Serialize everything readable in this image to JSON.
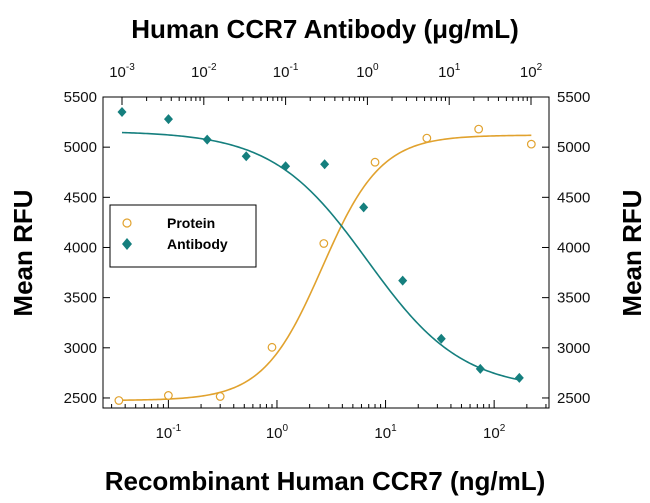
{
  "colors": {
    "protein": "#E1A22E",
    "antibody": "#157F7E",
    "axis": "#000000"
  },
  "chart_data": {
    "type": "scatter",
    "title": "Human CCR7 Antibody (μg/mL)",
    "xlabel": "Recombinant Human CCR7 (ng/mL)",
    "ylabel": "Mean RFU",
    "y2label": "Mean RFU",
    "xscale": "log",
    "xlim": [
      0.025,
      320
    ],
    "ylim": [
      2400,
      5500
    ],
    "bottom_ticks": [
      {
        "base": "10",
        "exp": "-1",
        "value": 0.1
      },
      {
        "base": "10",
        "exp": "0",
        "value": 1
      },
      {
        "base": "10",
        "exp": "1",
        "value": 10
      },
      {
        "base": "10",
        "exp": "2",
        "value": 100
      }
    ],
    "top_axis": {
      "xlim": [
        0.001,
        100
      ],
      "ticks": [
        {
          "base": "10",
          "exp": "-3",
          "value": 0.001
        },
        {
          "base": "10",
          "exp": "-2",
          "value": 0.01
        },
        {
          "base": "10",
          "exp": "-1",
          "value": 0.1
        },
        {
          "base": "10",
          "exp": "0",
          "value": 1
        },
        {
          "base": "10",
          "exp": "1",
          "value": 10
        },
        {
          "base": "10",
          "exp": "2",
          "value": 100
        }
      ]
    },
    "y_ticks": [
      {
        "label": "2500",
        "value": 2500
      },
      {
        "label": "3000",
        "value": 3000
      },
      {
        "label": "3500",
        "value": 3500
      },
      {
        "label": "4000",
        "value": 4000
      },
      {
        "label": "4500",
        "value": 4500
      },
      {
        "label": "5000",
        "value": 5000
      },
      {
        "label": "5500",
        "value": 5500
      }
    ],
    "legend": {
      "position": "left-middle"
    },
    "series": [
      {
        "name": "Protein",
        "marker": "open-circle",
        "color": "#E1A22E",
        "x": [
          0.035,
          0.1,
          0.3,
          0.9,
          2.7,
          8,
          24,
          72,
          220
        ],
        "y": [
          2475,
          2525,
          2515,
          3005,
          4040,
          4850,
          5090,
          5180,
          5030
        ],
        "fit": {
          "bottom": 2475,
          "top": 5120,
          "ec50": 2.6,
          "hill": 1.6
        }
      },
      {
        "name": "Antibody",
        "marker": "filled-diamond",
        "color": "#157F7E",
        "x_axis": "top",
        "x": [
          0.001,
          0.0037,
          0.011,
          0.033,
          0.1,
          0.3,
          0.9,
          2.7,
          8,
          24,
          72
        ],
        "y": [
          5350,
          5280,
          5075,
          4910,
          4810,
          4830,
          4400,
          3670,
          3090,
          2790,
          2700
        ],
        "fit": {
          "top": 5160,
          "bottom": 2580,
          "ec50": 1.0,
          "hill": 0.75
        }
      }
    ]
  }
}
